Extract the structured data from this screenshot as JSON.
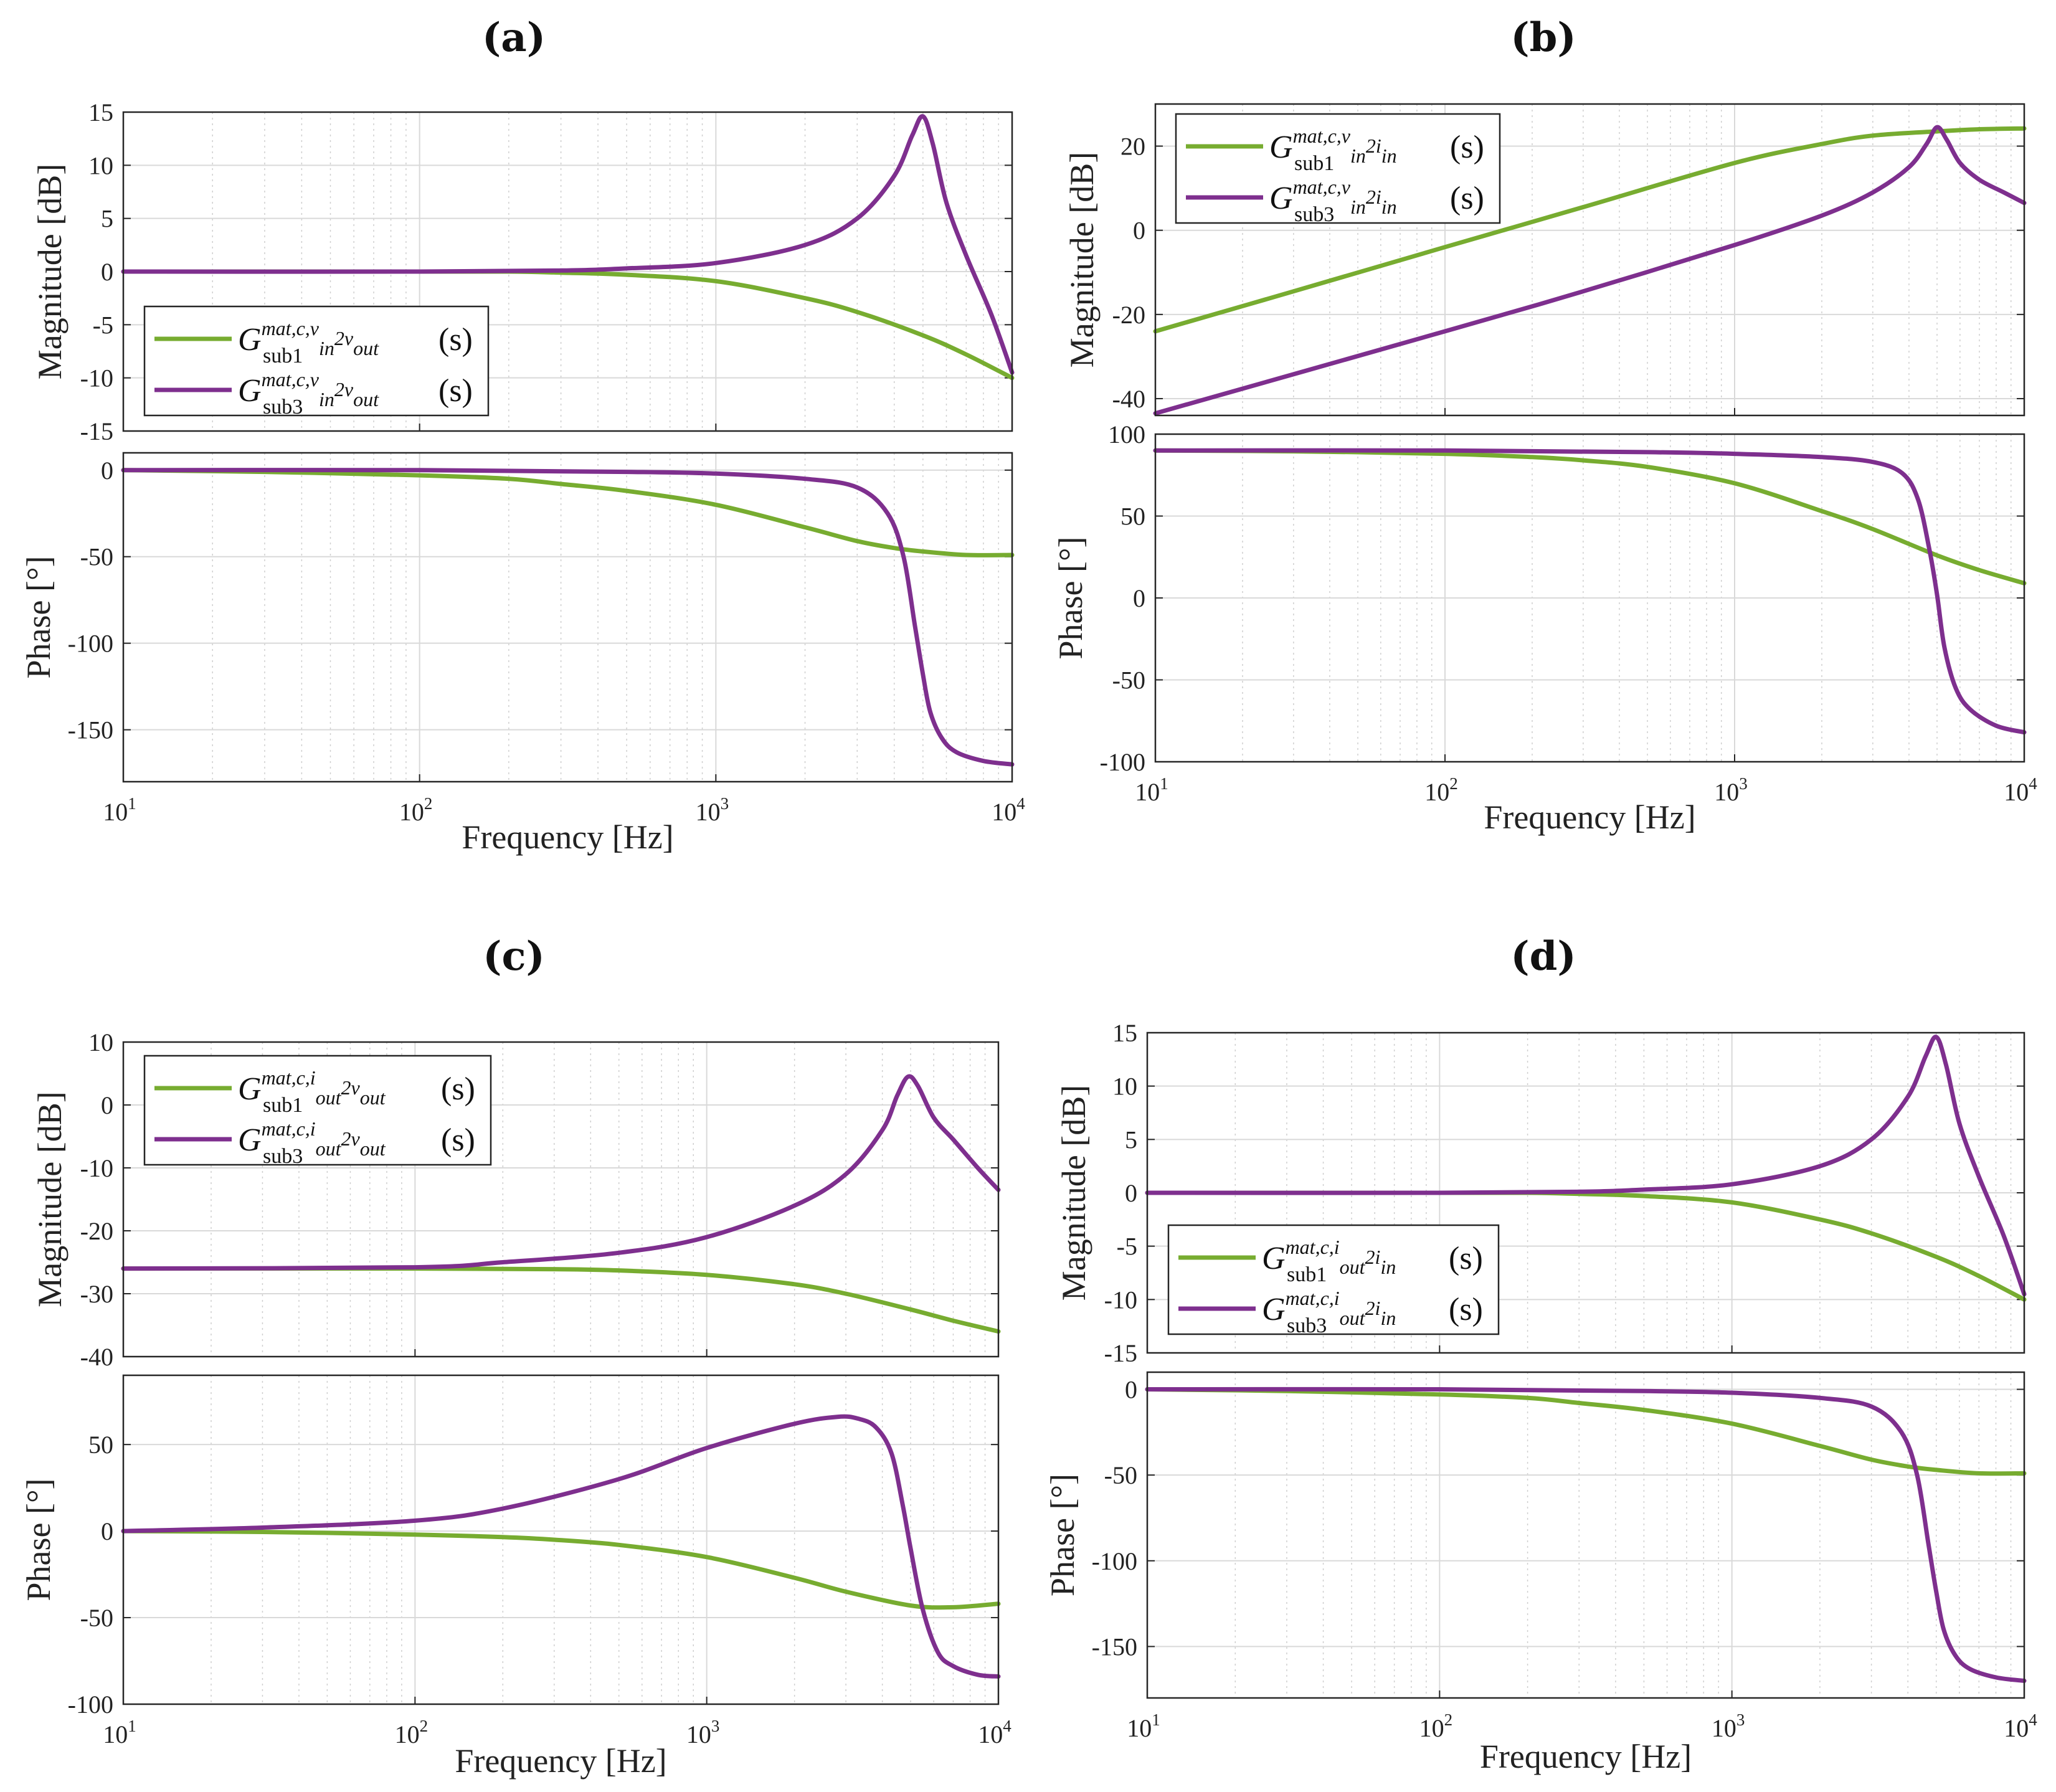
{
  "colors": {
    "sub1": "#77AC30",
    "sub3": "#7E2F8E"
  },
  "chart_data": [
    {
      "panel": "(a)",
      "type": "line",
      "x_scale": "log",
      "xlim": [
        10,
        10000
      ],
      "xlabel": "Frequency [Hz]",
      "x_ticks": [
        {
          "base": "10",
          "exp": "1"
        },
        {
          "base": "10",
          "exp": "2"
        },
        {
          "base": "10",
          "exp": "3"
        },
        {
          "base": "10",
          "exp": "4"
        }
      ],
      "magnitude": {
        "ylabel": "Magnitude [dB]",
        "ylim": [
          -15,
          15
        ],
        "yticks": [
          "15",
          "10",
          "5",
          "0",
          "-5",
          "-10",
          "-15"
        ],
        "legend_position": "lower-left",
        "series": [
          {
            "name": "sub1",
            "label": {
              "base": "G",
              "sup": "mat,c,v",
              "sup_sub": "in",
              "sup2": "2v",
              "sup_sub2": "out",
              "sub": "sub1",
              "arg": "(s)"
            },
            "x": [
              10,
              30,
              100,
              200,
              300,
              500,
              1000,
              2000,
              3000,
              5000,
              7000,
              10000
            ],
            "y": [
              0,
              0,
              0,
              0,
              -0.1,
              -0.3,
              -0.9,
              -2.5,
              -3.8,
              -6,
              -7.8,
              -10
            ]
          },
          {
            "name": "sub3",
            "label": {
              "base": "G",
              "sup": "mat,c,v",
              "sup_sub": "in",
              "sup2": "2v",
              "sup_sub2": "out",
              "sub": "sub3",
              "arg": "(s)"
            },
            "x": [
              10,
              100,
              300,
              500,
              1000,
              2000,
              3000,
              4000,
              4600,
              5000,
              5400,
              6000,
              7000,
              8500,
              10000
            ],
            "y": [
              0,
              0,
              0.1,
              0.3,
              0.8,
              2.5,
              5,
              9,
              12.8,
              14.6,
              12,
              6.5,
              1.5,
              -4,
              -9.5
            ]
          }
        ]
      },
      "phase": {
        "ylabel": "Phase [°]",
        "ylim": [
          -180,
          10
        ],
        "yticks": [
          "0",
          "-50",
          "-100",
          "-150"
        ],
        "series": [
          {
            "name": "sub1",
            "x": [
              10,
              30,
              100,
              200,
              300,
              500,
              1000,
              2000,
              3000,
              4000,
              5000,
              7000,
              10000
            ],
            "y": [
              0,
              -1,
              -3,
              -5,
              -8,
              -12,
              -20,
              -33,
              -41,
              -45,
              -47,
              -49,
              -49
            ]
          },
          {
            "name": "sub3",
            "x": [
              10,
              100,
              500,
              1000,
              2000,
              3000,
              3800,
              4300,
              4700,
              5000,
              5300,
              5800,
              6500,
              8000,
              10000
            ],
            "y": [
              0,
              0,
              -1,
              -2,
              -5,
              -10,
              -25,
              -50,
              -90,
              -118,
              -140,
              -155,
              -163,
              -168,
              -170
            ]
          }
        ]
      }
    },
    {
      "panel": "(b)",
      "type": "line",
      "x_scale": "log",
      "xlim": [
        10,
        10000
      ],
      "xlabel": "Frequency [Hz]",
      "x_ticks": [
        {
          "base": "10",
          "exp": "1"
        },
        {
          "base": "10",
          "exp": "2"
        },
        {
          "base": "10",
          "exp": "3"
        },
        {
          "base": "10",
          "exp": "4"
        }
      ],
      "magnitude": {
        "ylabel": "Magnitude [dB]",
        "ylim": [
          -44,
          30
        ],
        "yticks": [
          "20",
          "0",
          "-20",
          "-40"
        ],
        "legend_position": "top-left",
        "series": [
          {
            "name": "sub1",
            "label": {
              "base": "G",
              "sup": "mat,c,v",
              "sup_sub": "in",
              "sup2": "2i",
              "sup_sub2": "in",
              "sub": "sub1",
              "arg": "(s)"
            },
            "x": [
              10,
              30,
              100,
              300,
              1000,
              2000,
              3000,
              5000,
              7000,
              10000
            ],
            "y": [
              -24,
              -14.5,
              -4,
              5.5,
              16,
              20.5,
              22.5,
              23.5,
              24,
              24.2
            ]
          },
          {
            "name": "sub3",
            "label": {
              "base": "G",
              "sup": "mat,c,v",
              "sup_sub": "in",
              "sup2": "2i",
              "sup_sub2": "in",
              "sub": "sub3",
              "arg": "(s)"
            },
            "x": [
              10,
              100,
              300,
              1000,
              2000,
              3000,
              4000,
              4600,
              5000,
              5400,
              6000,
              7000,
              8500,
              10000
            ],
            "y": [
              -43.5,
              -24,
              -14.5,
              -3.5,
              3.5,
              9,
              15,
              20.5,
              24.5,
              21.5,
              16,
              12,
              9,
              6.5
            ]
          }
        ]
      },
      "phase": {
        "ylabel": "Phase [°]",
        "ylim": [
          -100,
          100
        ],
        "yticks": [
          "100",
          "50",
          "0",
          "-50",
          "-100"
        ],
        "series": [
          {
            "name": "sub1",
            "x": [
              10,
              30,
              100,
              200,
              300,
              500,
              1000,
              2000,
              3000,
              5000,
              7000,
              10000
            ],
            "y": [
              90,
              89.5,
              88,
              86,
              84,
              80,
              70,
              53,
              42,
              26,
              17,
              9
            ]
          },
          {
            "name": "sub3",
            "x": [
              10,
              100,
              500,
              1000,
              2000,
              3000,
              3800,
              4300,
              4700,
              5000,
              5300,
              5800,
              6500,
              8000,
              10000
            ],
            "y": [
              90,
              90,
              89,
              88,
              86,
              83,
              76,
              60,
              30,
              2,
              -30,
              -55,
              -68,
              -78,
              -82
            ]
          }
        ]
      }
    },
    {
      "panel": "(c)",
      "type": "line",
      "x_scale": "log",
      "xlim": [
        10,
        10000
      ],
      "xlabel": "Frequency [Hz]",
      "x_ticks": [
        {
          "base": "10",
          "exp": "1"
        },
        {
          "base": "10",
          "exp": "2"
        },
        {
          "base": "10",
          "exp": "3"
        },
        {
          "base": "10",
          "exp": "4"
        }
      ],
      "magnitude": {
        "ylabel": "Magnitude [dB]",
        "ylim": [
          -40,
          10
        ],
        "yticks": [
          "10",
          "0",
          "-10",
          "-20",
          "-30",
          "-40"
        ],
        "legend_position": "top-left",
        "series": [
          {
            "name": "sub1",
            "label": {
              "base": "G",
              "sup": "mat,c,i",
              "sup_sub": "out",
              "sup2": "2v",
              "sup_sub2": "out",
              "sub": "sub1",
              "arg": "(s)"
            },
            "x": [
              10,
              100,
              300,
              500,
              1000,
              2000,
              3000,
              5000,
              7000,
              10000
            ],
            "y": [
              -26,
              -26,
              -26.1,
              -26.3,
              -27,
              -28.5,
              -30,
              -32.5,
              -34.3,
              -36
            ]
          },
          {
            "name": "sub3",
            "label": {
              "base": "G",
              "sup": "mat,c,i",
              "sup_sub": "out",
              "sup2": "2v",
              "sup_sub2": "out",
              "sub": "sub3",
              "arg": "(s)"
            },
            "x": [
              10,
              100,
              200,
              500,
              1000,
              2000,
              3000,
              4000,
              4500,
              4900,
              5300,
              6000,
              7000,
              8500,
              10000
            ],
            "y": [
              -26,
              -25.8,
              -25,
              -23.5,
              -21,
              -16,
              -11,
              -4,
              1.5,
              4.5,
              3,
              -2,
              -5.5,
              -10,
              -13.5
            ]
          }
        ]
      },
      "phase": {
        "ylabel": "Phase [°]",
        "ylim": [
          -100,
          90
        ],
        "yticks": [
          "50",
          "0",
          "-50",
          "-100"
        ],
        "series": [
          {
            "name": "sub1",
            "x": [
              10,
              30,
              100,
              200,
              300,
              500,
              1000,
              2000,
              3000,
              5000,
              7000,
              10000
            ],
            "y": [
              0,
              -0.5,
              -2,
              -3.5,
              -5,
              -8,
              -15,
              -27,
              -35,
              -43,
              -44,
              -42
            ]
          },
          {
            "name": "sub3",
            "x": [
              10,
              30,
              100,
              200,
              500,
              1000,
              2000,
              2800,
              3300,
              3800,
              4300,
              4700,
              5000,
              5500,
              6200,
              7000,
              8500,
              10000
            ],
            "y": [
              0,
              2,
              6,
              13,
              30,
              48,
              62,
              66,
              65,
              60,
              45,
              15,
              -10,
              -45,
              -70,
              -78,
              -83,
              -84
            ]
          }
        ]
      }
    },
    {
      "panel": "(d)",
      "type": "line",
      "x_scale": "log",
      "xlim": [
        10,
        10000
      ],
      "xlabel": "Frequency [Hz]",
      "x_ticks": [
        {
          "base": "10",
          "exp": "1"
        },
        {
          "base": "10",
          "exp": "2"
        },
        {
          "base": "10",
          "exp": "3"
        },
        {
          "base": "10",
          "exp": "4"
        }
      ],
      "magnitude": {
        "ylabel": "Magnitude [dB]",
        "ylim": [
          -15,
          15
        ],
        "yticks": [
          "15",
          "10",
          "5",
          "0",
          "-5",
          "-10",
          "-15"
        ],
        "legend_position": "lower-left",
        "series": [
          {
            "name": "sub1",
            "label": {
              "base": "G",
              "sup": "mat,c,i",
              "sup_sub": "out",
              "sup2": "2i",
              "sup_sub2": "in",
              "sub": "sub1",
              "arg": "(s)"
            },
            "x": [
              10,
              30,
              100,
              200,
              300,
              500,
              1000,
              2000,
              3000,
              5000,
              7000,
              10000
            ],
            "y": [
              0,
              0,
              0,
              0,
              -0.1,
              -0.3,
              -0.9,
              -2.5,
              -3.8,
              -6,
              -7.8,
              -10
            ]
          },
          {
            "name": "sub3",
            "label": {
              "base": "G",
              "sup": "mat,c,i",
              "sup_sub": "out",
              "sup2": "2i",
              "sup_sub2": "in",
              "sub": "sub3",
              "arg": "(s)"
            },
            "x": [
              10,
              100,
              300,
              500,
              1000,
              2000,
              3000,
              4000,
              4600,
              5000,
              5400,
              6000,
              7000,
              8500,
              10000
            ],
            "y": [
              0,
              0,
              0.1,
              0.3,
              0.8,
              2.5,
              5,
              9,
              12.8,
              14.6,
              12,
              6.5,
              1.5,
              -4,
              -9.5
            ]
          }
        ]
      },
      "phase": {
        "ylabel": "Phase [°]",
        "ylim": [
          -180,
          10
        ],
        "yticks": [
          "0",
          "-50",
          "-100",
          "-150"
        ],
        "series": [
          {
            "name": "sub1",
            "x": [
              10,
              30,
              100,
              200,
              300,
              500,
              1000,
              2000,
              3000,
              4000,
              5000,
              7000,
              10000
            ],
            "y": [
              0,
              -1,
              -3,
              -5,
              -8,
              -12,
              -20,
              -33,
              -41,
              -45,
              -47,
              -49,
              -49
            ]
          },
          {
            "name": "sub3",
            "x": [
              10,
              100,
              500,
              1000,
              2000,
              3000,
              3800,
              4300,
              4700,
              5000,
              5300,
              5800,
              6500,
              8000,
              10000
            ],
            "y": [
              0,
              0,
              -1,
              -2,
              -5,
              -10,
              -25,
              -50,
              -90,
              -118,
              -140,
              -155,
              -163,
              -168,
              -170
            ]
          }
        ]
      }
    }
  ]
}
